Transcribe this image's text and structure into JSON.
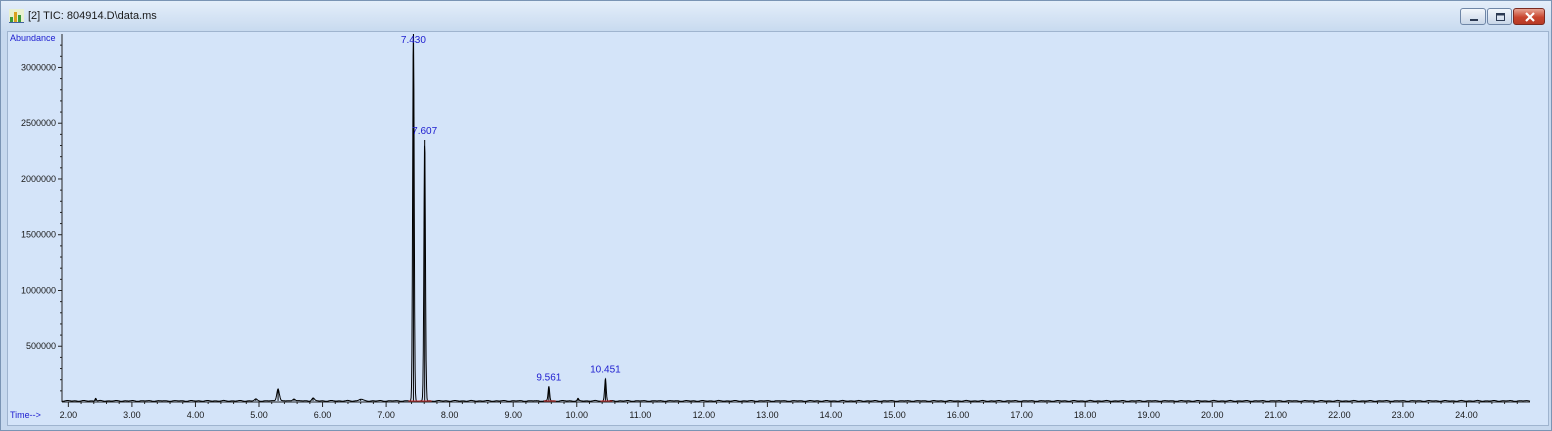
{
  "window": {
    "title": "[2] TIC: 804914.D\\data.ms",
    "icon": "chromatogram-app-icon",
    "controls": [
      "minimize",
      "maximize",
      "close"
    ]
  },
  "chart_data": {
    "type": "line",
    "title": "",
    "xlabel": "Time-->",
    "ylabel": "Abundance",
    "xlim": [
      1.9,
      25.0
    ],
    "ylim": [
      0,
      3300000
    ],
    "x_ticks": [
      2.0,
      3.0,
      4.0,
      5.0,
      6.0,
      7.0,
      8.0,
      9.0,
      10.0,
      11.0,
      12.0,
      13.0,
      14.0,
      15.0,
      16.0,
      17.0,
      18.0,
      19.0,
      20.0,
      21.0,
      22.0,
      23.0,
      24.0
    ],
    "x_tick_labels": [
      "2.00",
      "3.00",
      "4.00",
      "5.00",
      "6.00",
      "7.00",
      "8.00",
      "9.00",
      "10.00",
      "11.00",
      "12.00",
      "13.00",
      "14.00",
      "15.00",
      "16.00",
      "17.00",
      "18.00",
      "19.00",
      "20.00",
      "21.00",
      "22.00",
      "23.00",
      "24.00"
    ],
    "y_ticks": [
      500000,
      1000000,
      1500000,
      2000000,
      2500000,
      3000000
    ],
    "y_tick_labels": [
      "500000",
      "1000000",
      "1500000",
      "2000000",
      "2500000",
      "3000000"
    ],
    "grid": false,
    "baseline": 10000,
    "series": [
      {
        "color": "#000000",
        "peaks": [
          {
            "x": 2.43,
            "height": 25000,
            "width": 0.01
          },
          {
            "x": 4.95,
            "height": 15000,
            "width": 0.02
          },
          {
            "x": 5.3,
            "height": 110000,
            "width": 0.02
          },
          {
            "x": 5.55,
            "height": 20000,
            "width": 0.02
          },
          {
            "x": 5.85,
            "height": 25000,
            "width": 0.02
          },
          {
            "x": 6.6,
            "height": 15000,
            "width": 0.03
          },
          {
            "x": 7.43,
            "height": 3400000,
            "width": 0.012
          },
          {
            "x": 7.607,
            "height": 2340000,
            "width": 0.012
          },
          {
            "x": 9.561,
            "height": 130000,
            "width": 0.012
          },
          {
            "x": 10.02,
            "height": 20000,
            "width": 0.01
          },
          {
            "x": 10.451,
            "height": 200000,
            "width": 0.012
          }
        ]
      }
    ],
    "peak_labels": [
      {
        "x": 7.43,
        "label": "7.430"
      },
      {
        "x": 7.607,
        "label": "7.607"
      },
      {
        "x": 9.561,
        "label": "9.561"
      },
      {
        "x": 10.451,
        "label": "10.451"
      }
    ],
    "integration_color": "#d03030",
    "label_color": "#2020d0"
  }
}
